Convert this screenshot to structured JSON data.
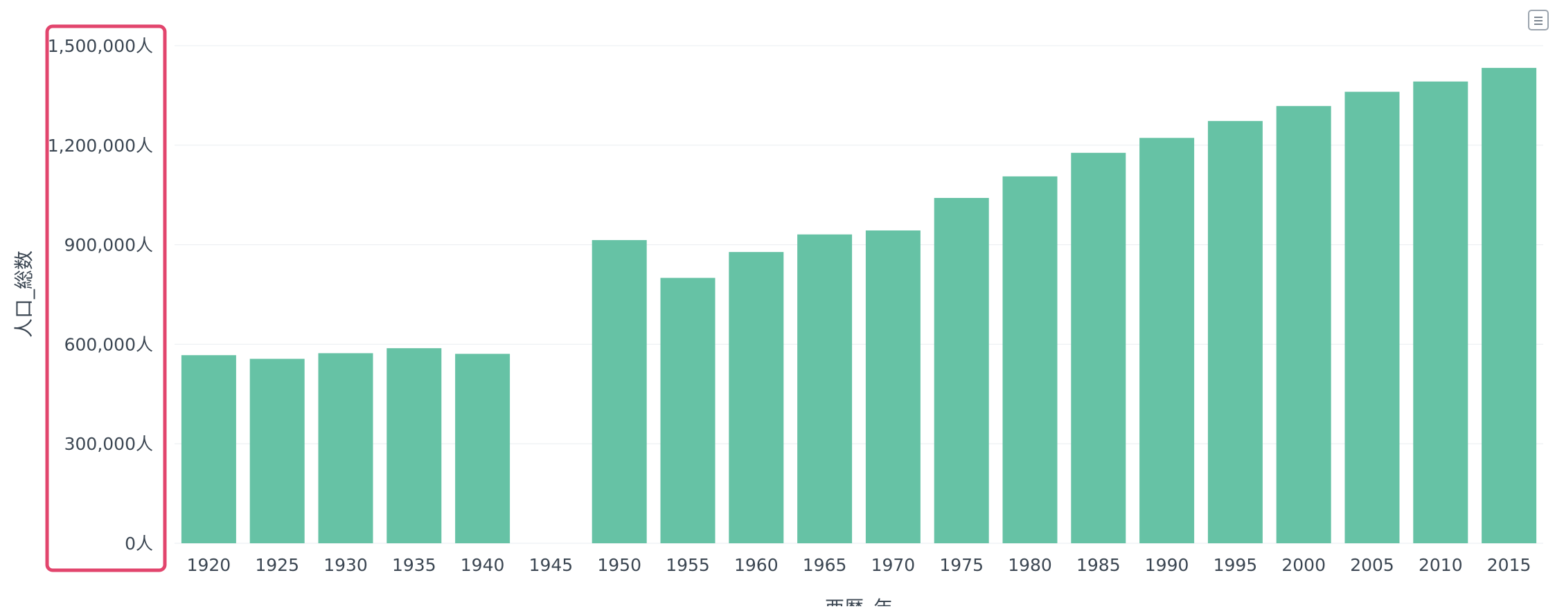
{
  "chart_data": {
    "type": "bar",
    "title": "",
    "xlabel": "西暦_年",
    "ylabel": "人口_総数",
    "ylim": [
      0,
      1500000
    ],
    "yticks": [
      0,
      300000,
      600000,
      900000,
      1200000,
      1500000
    ],
    "ytick_labels": [
      "0人",
      "300,000人",
      "600,000人",
      "900,000人",
      "1,200,000人",
      "1,500,000人"
    ],
    "categories": [
      "1920",
      "1925",
      "1930",
      "1935",
      "1940",
      "1945",
      "1950",
      "1955",
      "1960",
      "1965",
      "1970",
      "1975",
      "1980",
      "1985",
      "1990",
      "1995",
      "2000",
      "2005",
      "2010",
      "2015"
    ],
    "values": [
      567000,
      556000,
      573000,
      588000,
      571000,
      null,
      914000,
      800000,
      878000,
      931000,
      943000,
      1041000,
      1106000,
      1177000,
      1222000,
      1273000,
      1318000,
      1361000,
      1392000,
      1433000
    ],
    "grid": true,
    "colors": {
      "bar": "#66c2a5",
      "grid": "#e9edf0",
      "highlight": "#e2456d"
    }
  },
  "ui": {
    "menu_icon": "menu-icon"
  }
}
